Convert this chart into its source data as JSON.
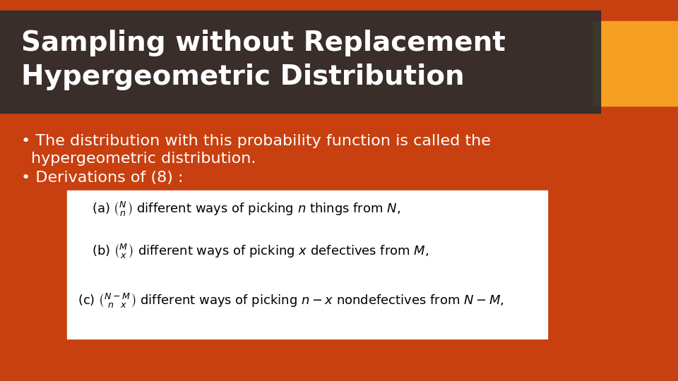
{
  "bg_color": "#C84010",
  "title_bar_color": "#2D2D2D",
  "title_bar_alpha": 0.88,
  "orange_rect_color": "#F5A020",
  "title_text": "Sampling without Replacement\nHypergeometric Distribution",
  "title_color": "#FFFFFF",
  "title_fontsize": 28,
  "bullet1_line1": "The distribution with this probability function is called the",
  "bullet1_line2": "hypergeometric distribution.",
  "bullet2": "Derivations of (8) :",
  "bullet_color": "#FFFFFF",
  "bullet_fontsize": 16,
  "white_box_color": "#FFFFFF",
  "formula_image_placeholder": true
}
